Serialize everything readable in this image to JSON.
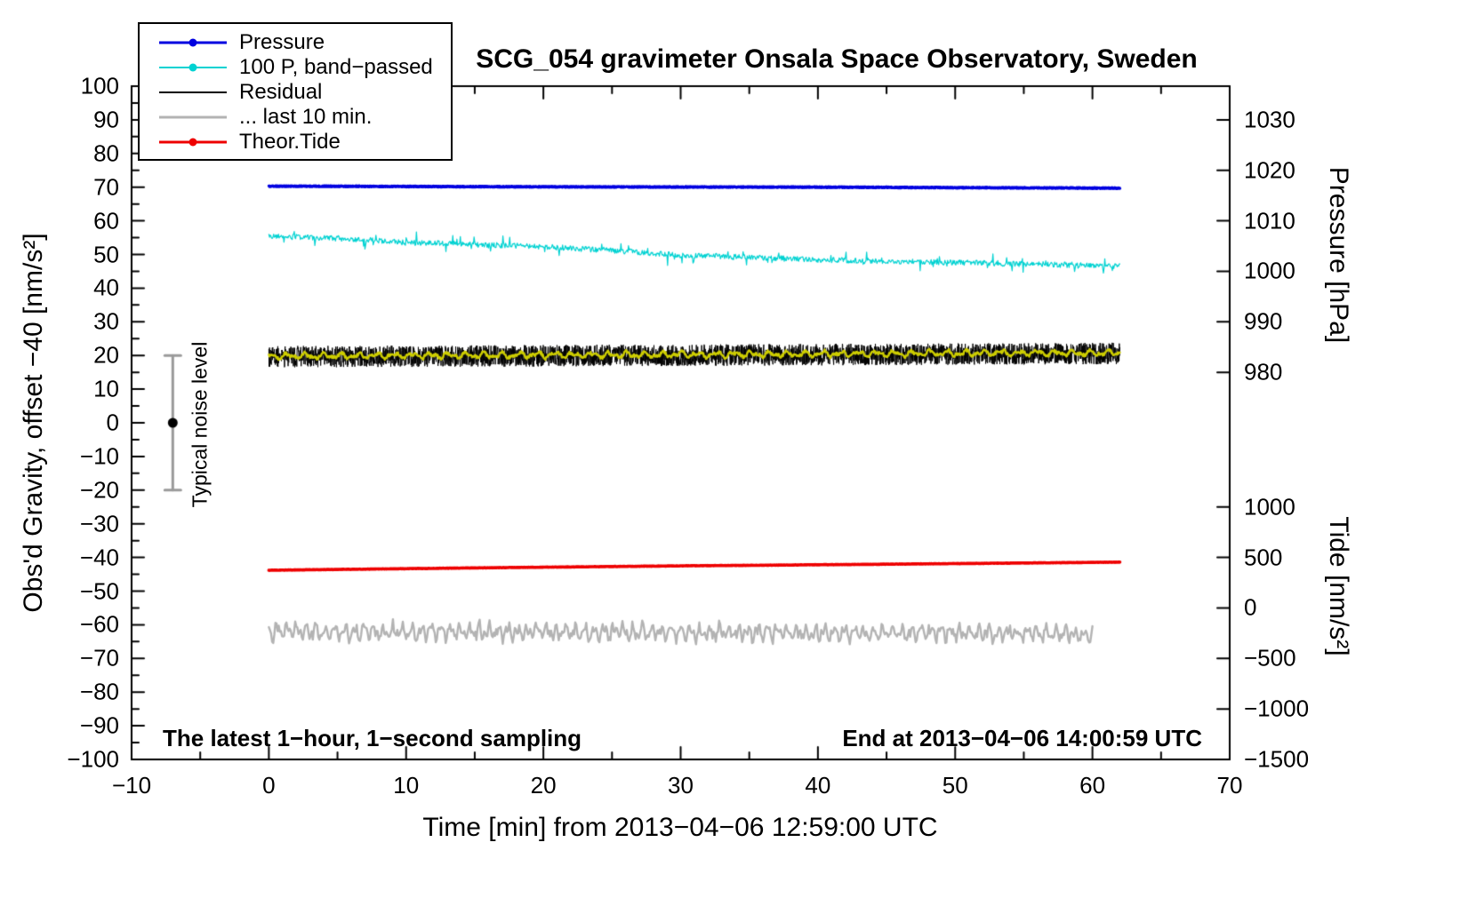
{
  "title": "SCG_054 gravimeter Onsala Space Observatory, Sweden",
  "annotations": {
    "bottom_left": "The latest 1−hour, 1−second sampling",
    "bottom_right": "End at 2013−04−06 14:00:59 UTC"
  },
  "legend": {
    "items": [
      {
        "label": "Pressure",
        "color": "#0000e0",
        "marker": true,
        "line_width": 3
      },
      {
        "label": "100 P, band−passed",
        "color": "#00d2d2",
        "marker": true,
        "line_width": 2
      },
      {
        "label": "Residual",
        "color": "#000000",
        "marker": false,
        "line_width": 2
      },
      {
        "label": "... last 10 min.",
        "color": "#b3b3b3",
        "marker": false,
        "line_width": 3
      },
      {
        "label": "Theor.Tide",
        "color": "#ee0000",
        "marker": true,
        "line_width": 3
      }
    ]
  },
  "chart_data": {
    "type": "line",
    "title": "SCG_054 gravimeter Onsala Space Observatory, Sweden",
    "grid": false,
    "legend_position": "top-left",
    "x_axis": {
      "label": "Time [min] from 2013−04−06 12:59:00 UTC",
      "min": -10,
      "max": 70,
      "major_ticks": [
        -10,
        0,
        10,
        20,
        30,
        40,
        50,
        60,
        70
      ],
      "minor_tick_step": 5
    },
    "y_axis_gravity": {
      "label": "Obs'd Gravity, offset −40 [nm/s²]",
      "min": -100,
      "max": 100,
      "major_tick_step": 10,
      "minor_tick_step": 5
    },
    "y_axis_pressure": {
      "label": "Pressure [hPa]",
      "ticks": [
        1030,
        1020,
        1010,
        1000,
        990,
        980
      ],
      "gravity_equivalent_of_1000hPa": 45,
      "gravity_units_per_hPa": 1.5
    },
    "y_axis_tide": {
      "label": "Tide [nm/s²]",
      "ticks": [
        1000,
        500,
        0,
        -500,
        -1000,
        -1500
      ],
      "gravity_equivalent_of_zero": -55,
      "gravity_units_per_tide_unit": 0.03
    },
    "noise_marker": {
      "label": "Typical noise level",
      "x": -7,
      "center": 0,
      "half_range": 20,
      "dot_color": "#000000",
      "bar_color": "#9a9a9a"
    },
    "series": [
      {
        "name": "Pressure",
        "color": "#0000e0",
        "width": 3.2,
        "x_step": 0.02,
        "points": [
          [
            0,
            70.3
          ],
          [
            20,
            70.1
          ],
          [
            40,
            70.0
          ],
          [
            62,
            69.7
          ]
        ],
        "noise": {
          "mode": "white",
          "amp": 0.15
        },
        "approx_hPa": {
          "start": 1016.8,
          "end": 1016.5
        }
      },
      {
        "name": "100 P, band−passed",
        "color": "#00d2d2",
        "width": 1.2,
        "x_step": 0.05,
        "points": [
          [
            0,
            55.5
          ],
          [
            5,
            54.8
          ],
          [
            10,
            53.6
          ],
          [
            15,
            53.0
          ],
          [
            20,
            52.3
          ],
          [
            25,
            51.2
          ],
          [
            30,
            49.8
          ],
          [
            35,
            49.2
          ],
          [
            40,
            48.4
          ],
          [
            45,
            48.0
          ],
          [
            50,
            47.6
          ],
          [
            55,
            47.2
          ],
          [
            62,
            46.6
          ]
        ],
        "noise": {
          "mode": "spiky",
          "amp": 1.5
        }
      },
      {
        "name": "Residual",
        "color": "#000000",
        "width": 1,
        "x_step": 0.0167,
        "points": [
          [
            0,
            19.6
          ],
          [
            62,
            20.6
          ]
        ],
        "noise": {
          "mode": "white",
          "amp": 3.2
        }
      },
      {
        "name": "Residual smoothed (yellow, unlabeled)",
        "color": "#cdcd00",
        "width": 2.4,
        "x_step": 0.05,
        "points": [
          [
            0,
            19.8
          ],
          [
            62,
            20.8
          ]
        ],
        "noise": {
          "mode": "wavy",
          "amp": 0.9,
          "period": 1.3
        }
      },
      {
        "name": "... last 10 min.",
        "color": "#b3b3b3",
        "width": 2.4,
        "x_step": 0.08,
        "points": [
          [
            0,
            -62.0
          ],
          [
            60,
            -62.5
          ]
        ],
        "noise": {
          "mode": "wavy",
          "amp": 2.4,
          "period": 0.7
        }
      },
      {
        "name": "Theor.Tide",
        "color": "#ee0000",
        "width": 3.6,
        "x_step": 0.05,
        "points": [
          [
            0,
            -43.8
          ],
          [
            15,
            -43.1
          ],
          [
            30,
            -42.5
          ],
          [
            45,
            -42.0
          ],
          [
            62,
            -41.4
          ]
        ],
        "noise": {
          "mode": "white",
          "amp": 0.05
        },
        "approx_tide_nms2": {
          "start": 373,
          "end": 453
        }
      }
    ]
  }
}
